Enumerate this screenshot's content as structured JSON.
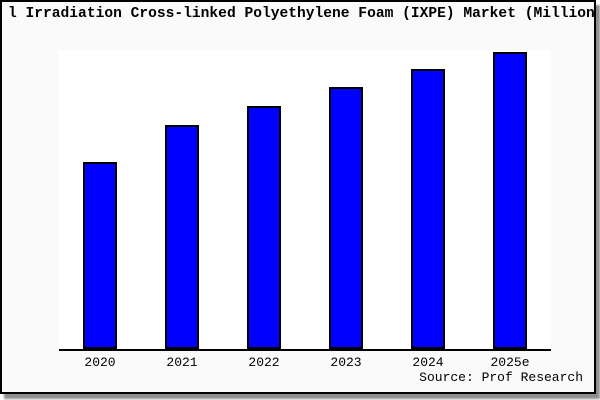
{
  "title": "l Irradiation Cross-linked Polyethylene Foam (IXPE) Market (Million",
  "source": "Source: Prof Research",
  "colors": {
    "bar_fill": "#0000FF",
    "bar_border": "#000000",
    "frame_border": "#000000",
    "frame_background": "#FAFAFA",
    "plot_background": "#FFFFFF",
    "text": "#000000",
    "shadow": "#8E8E8E"
  },
  "chart_data": {
    "type": "bar",
    "title": "l Irradiation Cross-linked Polyethylene Foam (IXPE) Market (Million",
    "categories": [
      "2020",
      "2021",
      "2022",
      "2023",
      "2024",
      "2025e"
    ],
    "values": [
      63.0,
      75.4,
      81.8,
      88.2,
      94.3,
      100.0
    ],
    "value_note": "No y-axis ticks or data labels are shown; values are relative bar heights with 2025e = 100",
    "xlabel": "",
    "ylabel": "",
    "ylim": [
      0,
      100.7
    ],
    "grid": false,
    "legend": false,
    "bar_color": "#0000FF",
    "source": "Source: Prof Research"
  }
}
